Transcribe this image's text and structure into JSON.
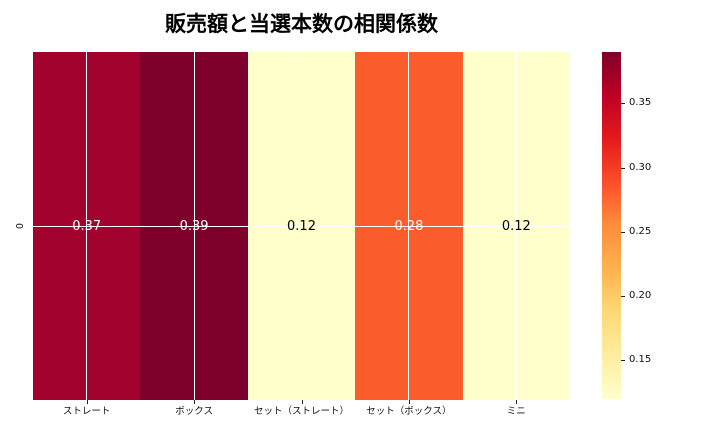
{
  "title": "販売額と当選本数の相関係数",
  "y_axis": {
    "tick_label": "0"
  },
  "colors": {
    "background": "#ffffff",
    "grid": "#ffffff",
    "tick": "#222222",
    "label_text": "#111111"
  },
  "chart_data": {
    "type": "heatmap",
    "title": "販売額と当選本数の相関係数",
    "categories": [
      "ストレート",
      "ボックス",
      "セット（ストレート）",
      "セット（ボックス）",
      "ミニ"
    ],
    "row_labels": [
      "0"
    ],
    "values": [
      [
        0.37,
        0.39,
        0.12,
        0.28,
        0.12
      ]
    ],
    "annotations": [
      [
        "0.37",
        "0.39",
        "0.12",
        "0.28",
        "0.12"
      ]
    ],
    "cell_colors": [
      "#a1022e",
      "#7e012b",
      "#ffffcb",
      "#fb5c2c",
      "#ffffcb"
    ],
    "annotation_colors": [
      "#ffffff",
      "#ffffff",
      "#000000",
      "#ffffff",
      "#000000"
    ],
    "vmin": 0.12,
    "vmax": 0.39,
    "colormap": "YlOrRd",
    "colormap_stops": [
      "#ffffcc",
      "#ffeda0",
      "#fed976",
      "#feb24c",
      "#fd8d3c",
      "#fc4e2a",
      "#e31a1c",
      "#bd0026",
      "#800026"
    ],
    "colorbar_ticks": [
      0.35,
      0.3,
      0.25,
      0.2,
      0.15
    ],
    "colorbar_tick_labels": [
      "0.35",
      "0.30",
      "0.25",
      "0.20",
      "0.15"
    ],
    "grid": true,
    "legend_position": "right-colorbar"
  }
}
